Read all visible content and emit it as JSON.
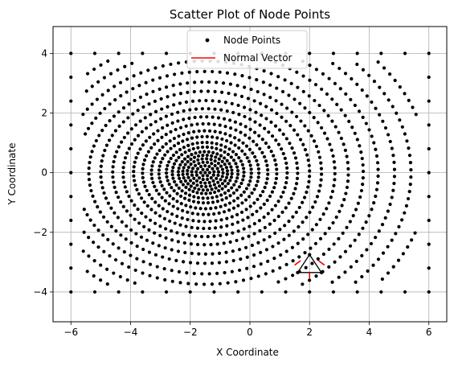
{
  "chart_data": {
    "type": "scatter",
    "title": "Scatter Plot of Node Points",
    "xlabel": "X Coordinate",
    "ylabel": "Y Coordinate",
    "xlim": [
      -6.6,
      6.6
    ],
    "ylim": [
      -5,
      4.9
    ],
    "xticks": [
      -6,
      -4,
      -2,
      0,
      2,
      4,
      6
    ],
    "yticks": [
      -4,
      -2,
      0,
      2,
      4
    ],
    "grid": true,
    "legend_position": "top-center",
    "legend": [
      {
        "label": "Node Points",
        "kind": "marker",
        "color": "#000000"
      },
      {
        "label": "Normal Vector",
        "kind": "line",
        "color": "#ff0000"
      }
    ],
    "series": [
      {
        "name": "Node Points",
        "color": "#000000",
        "boundary": {
          "x_range": [
            -6,
            6
          ],
          "y_range": [
            -4,
            4
          ],
          "spacing": 0.8,
          "inner_x_columns": [
            -6,
            6
          ],
          "inner_y_rows": [
            -4,
            4
          ],
          "inner_spacing": 0.8
        },
        "field": {
          "center": [
            -1.5,
            0
          ],
          "radii": [
            0.15,
            0.3,
            0.45,
            0.6,
            0.75,
            0.9,
            1.1,
            1.3,
            1.55,
            1.8,
            2.1,
            2.4,
            2.75,
            3.1,
            3.5,
            3.9,
            4.35,
            4.8,
            5.3,
            5.8,
            6.35,
            6.9,
            7.5
          ],
          "points_per_ring_growth": 7,
          "clip_x": [
            -5.6,
            5.6
          ],
          "clip_y": [
            -3.75,
            3.75
          ]
        },
        "triangle": [
          [
            1.6,
            -3.35
          ],
          [
            2.0,
            -2.75
          ],
          [
            2.4,
            -3.35
          ]
        ]
      },
      {
        "name": "Normal Vector",
        "color": "#ff0000",
        "segments": [
          [
            [
              1.7,
              -2.95
            ],
            [
              1.5,
              -3.1
            ]
          ],
          [
            [
              2.3,
              -2.95
            ],
            [
              2.5,
              -3.1
            ]
          ],
          [
            [
              2.0,
              -3.35
            ],
            [
              2.0,
              -3.55
            ]
          ]
        ]
      }
    ]
  }
}
